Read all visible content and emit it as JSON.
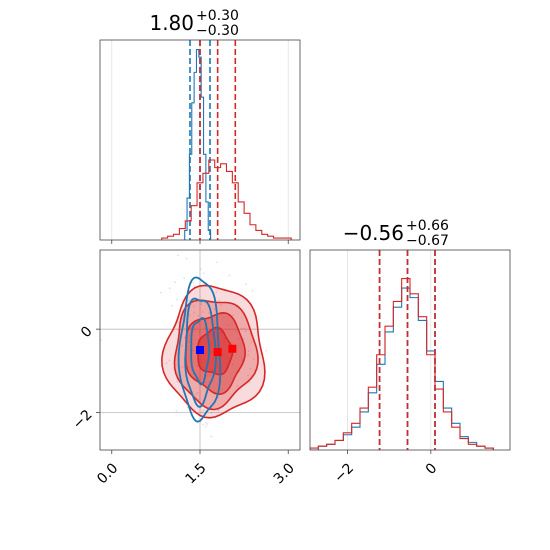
{
  "chart_data": [
    {
      "panel": "marginal-param1",
      "type": "line",
      "title": {
        "value": "1.80",
        "plus": "+0.30",
        "minus": "−0.30"
      },
      "xlim": [
        -0.2,
        3.2
      ],
      "xticks": [
        0.0,
        1.5,
        3.0
      ],
      "xtick_labels": [
        "0.0",
        "1.5",
        "3.0"
      ],
      "grid": true,
      "series": [
        {
          "color": "#1f77b4",
          "x": [
            1.26,
            1.3,
            1.34,
            1.38,
            1.42,
            1.46,
            1.5,
            1.54,
            1.58,
            1.62,
            1.66
          ],
          "values": [
            0.05,
            0.22,
            0.45,
            0.72,
            0.88,
            1.0,
            0.96,
            0.75,
            0.45,
            0.2,
            0.05
          ],
          "quantiles": [
            1.33,
            1.5,
            1.67
          ]
        },
        {
          "color": "#d62728",
          "x": [
            0.9,
            1.0,
            1.1,
            1.2,
            1.3,
            1.4,
            1.5,
            1.6,
            1.7,
            1.8,
            1.9,
            2.0,
            2.1,
            2.2,
            2.3,
            2.4,
            2.5,
            2.6,
            2.7,
            2.8,
            2.9,
            3.0
          ],
          "values": [
            0.01,
            0.02,
            0.03,
            0.06,
            0.1,
            0.18,
            0.3,
            0.35,
            0.42,
            0.38,
            0.4,
            0.36,
            0.3,
            0.2,
            0.14,
            0.08,
            0.05,
            0.03,
            0.02,
            0.01,
            0.01,
            0.01
          ],
          "quantiles": [
            1.5,
            1.8,
            2.1
          ]
        }
      ]
    },
    {
      "panel": "marginal-param2",
      "type": "line",
      "title": {
        "value": "−0.56",
        "plus": "+0.66",
        "minus": "−0.67"
      },
      "xlim": [
        -2.9,
        1.9
      ],
      "xticks": [
        -2,
        0
      ],
      "xtick_labels": [
        "−2",
        "0"
      ],
      "grid": true,
      "series": [
        {
          "color": "#1f77b4",
          "x": [
            -2.8,
            -2.6,
            -2.4,
            -2.2,
            -2.0,
            -1.8,
            -1.6,
            -1.4,
            -1.2,
            -1.0,
            -0.8,
            -0.6,
            -0.4,
            -0.2,
            0.0,
            0.2,
            0.4,
            0.6,
            0.8,
            1.0,
            1.2,
            1.4
          ],
          "values": [
            0.0,
            0.02,
            0.03,
            0.05,
            0.08,
            0.12,
            0.2,
            0.3,
            0.45,
            0.62,
            0.75,
            0.85,
            0.8,
            0.68,
            0.52,
            0.36,
            0.22,
            0.14,
            0.07,
            0.04,
            0.02,
            0.01
          ],
          "quantiles": [
            -1.23,
            -0.56,
            0.1
          ]
        },
        {
          "color": "#d62728",
          "x": [
            -2.8,
            -2.6,
            -2.4,
            -2.2,
            -2.0,
            -1.8,
            -1.6,
            -1.4,
            -1.2,
            -1.0,
            -0.8,
            -0.6,
            -0.4,
            -0.2,
            0.0,
            0.2,
            0.4,
            0.6,
            0.8,
            1.0,
            1.2,
            1.4
          ],
          "values": [
            0.01,
            0.02,
            0.03,
            0.05,
            0.09,
            0.14,
            0.22,
            0.33,
            0.5,
            0.65,
            0.78,
            0.9,
            0.82,
            0.7,
            0.5,
            0.32,
            0.2,
            0.12,
            0.06,
            0.03,
            0.02,
            0.01
          ],
          "quantiles": [
            -1.23,
            -0.56,
            0.1
          ]
        }
      ]
    },
    {
      "panel": "joint",
      "type": "scatter",
      "xlim": [
        -0.2,
        3.2
      ],
      "ylim": [
        -2.9,
        1.9
      ],
      "xticks": [
        0.0,
        1.5,
        3.0
      ],
      "xtick_labels": [
        "0.0",
        "1.5",
        "3.0"
      ],
      "yticks": [
        -2,
        0
      ],
      "ytick_labels": [
        "−2",
        "0"
      ],
      "grid": true,
      "guide_lines": {
        "x": 1.5,
        "y": [
          0,
          -2
        ]
      },
      "series": [
        {
          "color": "#1f77b4",
          "center": [
            1.5,
            -0.5
          ],
          "spread": [
            0.17,
            0.85
          ],
          "contours": [
            0.9,
            1.5,
            2.0
          ],
          "fill": false,
          "markers": [
            [
              1.5,
              -0.5
            ]
          ]
        },
        {
          "color": "#d62728",
          "center": [
            1.75,
            -0.55
          ],
          "spread": [
            0.42,
            0.78
          ],
          "contours": [
            0.7,
            1.2,
            1.65,
            2.0
          ],
          "fill": true,
          "markers": [
            [
              1.8,
              -0.55
            ],
            [
              2.05,
              -0.47
            ]
          ]
        }
      ]
    }
  ]
}
